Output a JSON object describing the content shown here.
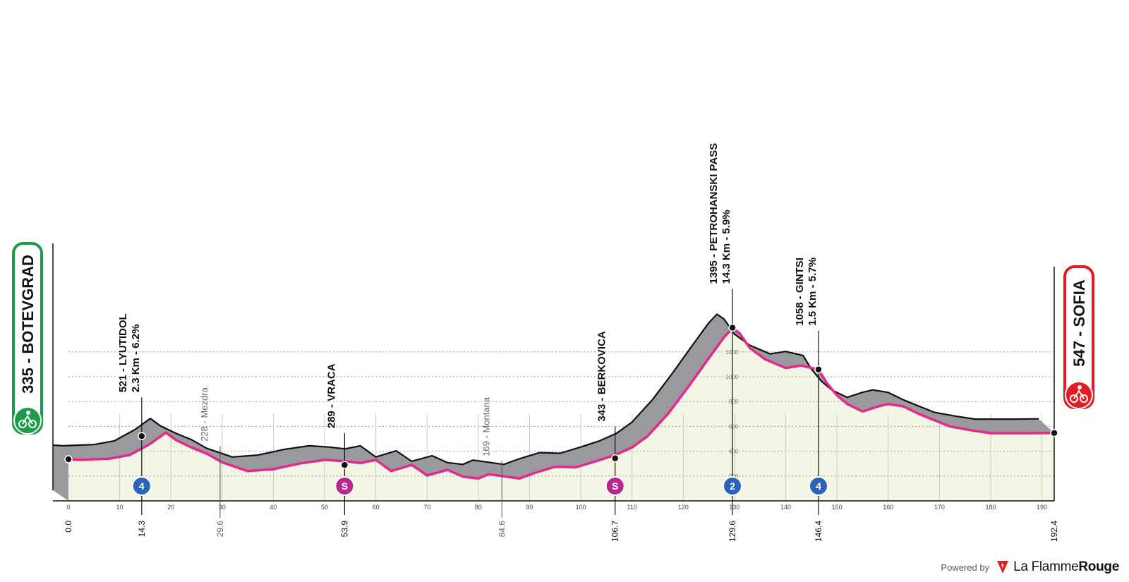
{
  "chart_data": {
    "type": "area",
    "xlim": [
      0,
      192.4
    ],
    "ylim": [
      0,
      1400
    ],
    "x_ticks": [
      0,
      10,
      20,
      30,
      40,
      50,
      60,
      70,
      80,
      90,
      100,
      110,
      120,
      130,
      140,
      150,
      160,
      170,
      180,
      190
    ],
    "y_ticks": [
      200,
      400,
      600,
      800,
      1000,
      1200
    ],
    "grid": true,
    "start": {
      "km": 0,
      "altitude": 335,
      "label": "335 - BOTEVGRAD"
    },
    "finish": {
      "km": 192.4,
      "altitude": 547,
      "label": "547 - SOFIA"
    },
    "profile": {
      "x": [
        0,
        2,
        5,
        8,
        12,
        16,
        19,
        21,
        24,
        27,
        30,
        35,
        40,
        45,
        50,
        53.9,
        57,
        60,
        63,
        67,
        70,
        74,
        77,
        80,
        82,
        84.6,
        88,
        91,
        95,
        99,
        103,
        106.7,
        110,
        113,
        117,
        121,
        125,
        128,
        129.6,
        131,
        133,
        136,
        140,
        143,
        146.4,
        148,
        150,
        152,
        155,
        158,
        160,
        163,
        166,
        169,
        172,
        176,
        180,
        184,
        188,
        192.4
      ],
      "y": [
        335,
        330,
        335,
        340,
        370,
        460,
        550,
        490,
        430,
        380,
        310,
        240,
        255,
        300,
        330,
        320,
        305,
        330,
        240,
        290,
        205,
        250,
        195,
        180,
        215,
        200,
        180,
        225,
        275,
        270,
        320,
        370,
        430,
        520,
        700,
        920,
        1150,
        1320,
        1390,
        1350,
        1230,
        1140,
        1070,
        1090,
        1058,
        950,
        850,
        780,
        720,
        760,
        780,
        760,
        700,
        650,
        600,
        570,
        545,
        545,
        545,
        547
      ]
    },
    "climbs": [
      {
        "km": 14.3,
        "altitude": 521,
        "name": "521 - LYUTIDOL",
        "details": "2.3 Km - 6.2%",
        "category": "4"
      },
      {
        "km": 129.6,
        "altitude": 1395,
        "name": "1395 - PETROHANSKI PASS",
        "details": "14.3 Km - 5.9%",
        "category": "2"
      },
      {
        "km": 146.4,
        "altitude": 1058,
        "name": "1058 - GINTSI",
        "details": "1.5 Km - 5.7%",
        "category": "4"
      }
    ],
    "sprints": [
      {
        "km": 53.9,
        "altitude": 289,
        "name": "289 - VRACA",
        "badge": "S"
      },
      {
        "km": 106.7,
        "altitude": 343,
        "name": "343 - BERKOVICA",
        "badge": "S"
      }
    ],
    "towns": [
      {
        "km": 29.6,
        "name": "228 - Mezdra"
      },
      {
        "km": 84.6,
        "name": "169 - Montana"
      }
    ],
    "marked_km": [
      "0.0",
      "14.3",
      "29.6",
      "53.9",
      "84.6",
      "106.7",
      "129.6",
      "146.4",
      "192.4"
    ],
    "colors": {
      "profile_line": "#e7288a",
      "area_fill": "#f3f6e4",
      "relief": "#9a9a9e",
      "start": "#1d9b4b",
      "finish": "#e11c24",
      "climb_badge": "#2b63b8",
      "sprint_badge": "#b5298f"
    }
  },
  "credit": {
    "powered_by": "Powered by",
    "brand_light": "La Flamme",
    "brand_bold": "Rouge"
  }
}
